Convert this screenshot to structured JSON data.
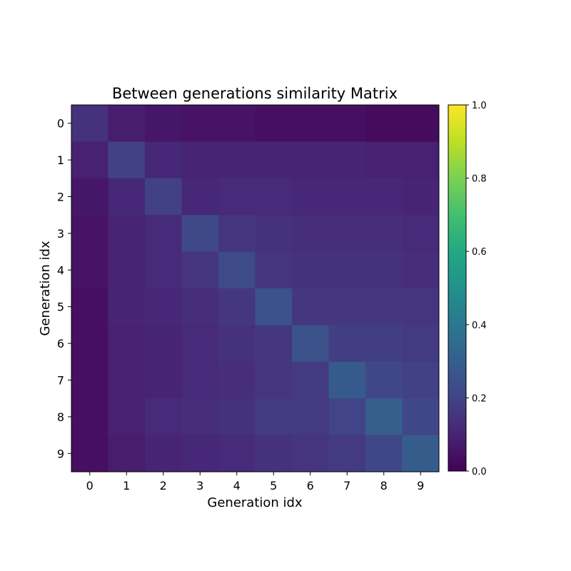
{
  "chart_data": {
    "type": "heatmap",
    "title": "Between generations similarity Matrix",
    "xlabel": "Generation idx",
    "ylabel": "Generation idx",
    "x_categories": [
      "0",
      "1",
      "2",
      "3",
      "4",
      "5",
      "6",
      "7",
      "8",
      "9"
    ],
    "y_categories": [
      "0",
      "1",
      "2",
      "3",
      "4",
      "5",
      "6",
      "7",
      "8",
      "9"
    ],
    "values": [
      [
        0.14,
        0.08,
        0.06,
        0.05,
        0.05,
        0.04,
        0.04,
        0.04,
        0.03,
        0.03
      ],
      [
        0.09,
        0.19,
        0.11,
        0.1,
        0.1,
        0.1,
        0.1,
        0.1,
        0.09,
        0.09
      ],
      [
        0.06,
        0.11,
        0.19,
        0.11,
        0.12,
        0.12,
        0.11,
        0.11,
        0.11,
        0.1
      ],
      [
        0.05,
        0.1,
        0.12,
        0.22,
        0.15,
        0.14,
        0.13,
        0.13,
        0.13,
        0.12
      ],
      [
        0.05,
        0.1,
        0.12,
        0.15,
        0.23,
        0.15,
        0.14,
        0.14,
        0.14,
        0.13
      ],
      [
        0.04,
        0.1,
        0.11,
        0.13,
        0.16,
        0.25,
        0.16,
        0.16,
        0.16,
        0.15
      ],
      [
        0.04,
        0.09,
        0.1,
        0.12,
        0.14,
        0.16,
        0.25,
        0.18,
        0.18,
        0.17
      ],
      [
        0.04,
        0.09,
        0.1,
        0.12,
        0.13,
        0.15,
        0.17,
        0.28,
        0.21,
        0.19
      ],
      [
        0.04,
        0.09,
        0.12,
        0.13,
        0.14,
        0.17,
        0.17,
        0.2,
        0.3,
        0.21
      ],
      [
        0.04,
        0.08,
        0.1,
        0.11,
        0.12,
        0.14,
        0.15,
        0.17,
        0.21,
        0.29
      ]
    ],
    "colorbar": {
      "colormap": "viridis",
      "range": [
        0.0,
        1.0
      ],
      "ticks": [
        0.0,
        0.2,
        0.4,
        0.6,
        0.8,
        1.0
      ],
      "tick_labels": [
        "0.0",
        "0.2",
        "0.4",
        "0.6",
        "0.8",
        "1.0"
      ]
    }
  }
}
